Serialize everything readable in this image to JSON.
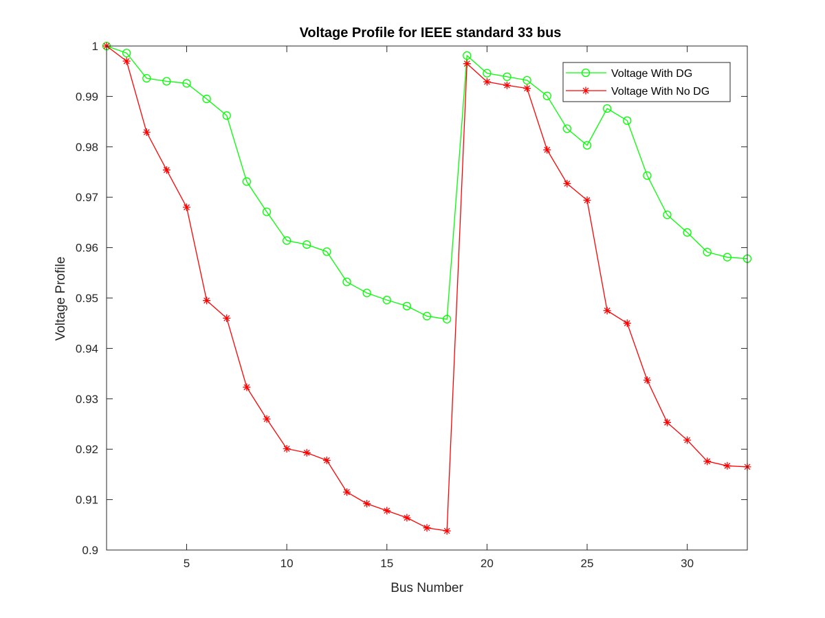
{
  "chart_data": {
    "type": "line",
    "title": "Voltage Profile for IEEE standard 33 bus",
    "xlabel": "Bus Number",
    "ylabel": "Voltage Profile",
    "xlim": [
      1,
      33
    ],
    "ylim": [
      0.9,
      1.0
    ],
    "x_ticks": [
      5,
      10,
      15,
      20,
      25,
      30
    ],
    "y_ticks": [
      0.9,
      0.91,
      0.92,
      0.93,
      0.94,
      0.95,
      0.96,
      0.97,
      0.98,
      0.99,
      1
    ],
    "x_tick_labels": [
      "5",
      "10",
      "15",
      "20",
      "25",
      "30"
    ],
    "y_tick_labels": [
      "0.9",
      "0.91",
      "0.92",
      "0.93",
      "0.94",
      "0.95",
      "0.96",
      "0.97",
      "0.98",
      "0.99",
      "1"
    ],
    "grid": false,
    "legend_position": "top-right",
    "x": [
      1,
      2,
      3,
      4,
      5,
      6,
      7,
      8,
      9,
      10,
      11,
      12,
      13,
      14,
      15,
      16,
      17,
      18,
      19,
      20,
      21,
      22,
      23,
      24,
      25,
      26,
      27,
      28,
      29,
      30,
      31,
      32,
      33
    ],
    "series": [
      {
        "name": "Voltage With DG",
        "color": "#00ff00",
        "marker": "circle",
        "values": [
          1.0,
          0.9986,
          0.9936,
          0.993,
          0.9926,
          0.9895,
          0.9862,
          0.9731,
          0.9671,
          0.9614,
          0.9606,
          0.9592,
          0.9532,
          0.951,
          0.9496,
          0.9484,
          0.9464,
          0.9458,
          0.9981,
          0.9946,
          0.9939,
          0.9932,
          0.9901,
          0.9836,
          0.9803,
          0.9876,
          0.9852,
          0.9743,
          0.9665,
          0.963,
          0.9591,
          0.9581,
          0.9578
        ]
      },
      {
        "name": "Voltage With No DG",
        "color": "#ff0000",
        "marker": "asterisk",
        "values": [
          1.0,
          0.997,
          0.9829,
          0.9754,
          0.968,
          0.9495,
          0.946,
          0.9323,
          0.926,
          0.9201,
          0.9193,
          0.9178,
          0.9115,
          0.9092,
          0.9078,
          0.9064,
          0.9044,
          0.9038,
          0.9965,
          0.9929,
          0.9922,
          0.9916,
          0.9794,
          0.9727,
          0.9694,
          0.9475,
          0.945,
          0.9337,
          0.9253,
          0.9218,
          0.9176,
          0.9167,
          0.9165
        ]
      }
    ]
  }
}
